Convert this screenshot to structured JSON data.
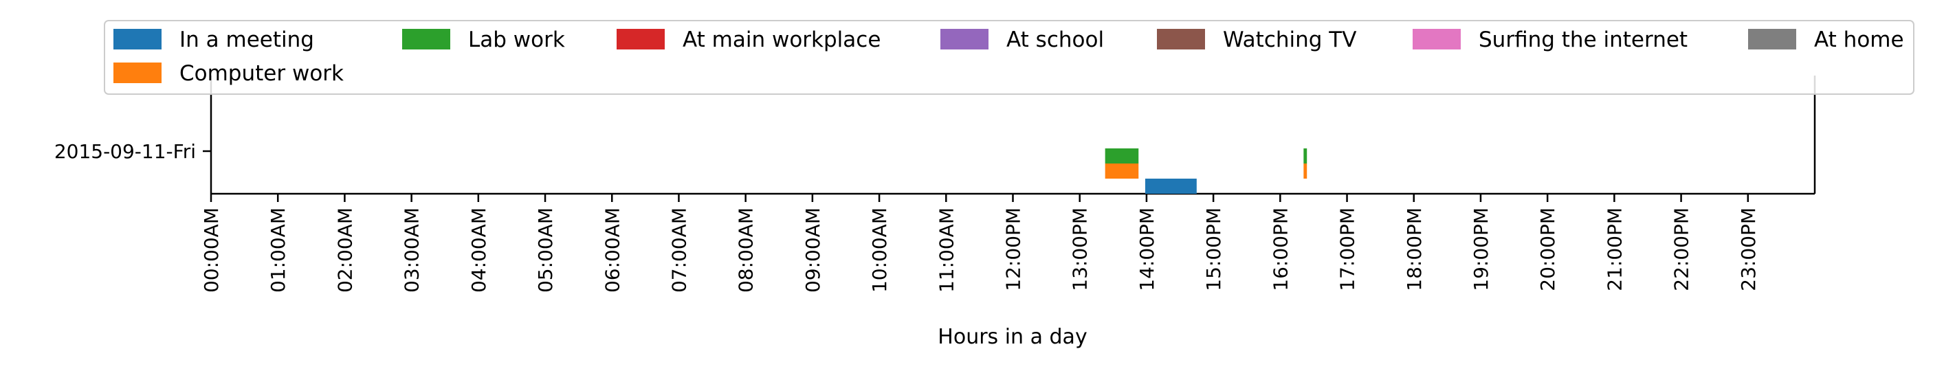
{
  "chart_data": {
    "type": "bar",
    "orientation": "horizontal-timeline",
    "title": "",
    "xlabel": "Hours in a day",
    "ylabel": "",
    "xlim": [
      0,
      24
    ],
    "x_ticks": [
      "00:00AM",
      "01:00AM",
      "02:00AM",
      "03:00AM",
      "04:00AM",
      "05:00AM",
      "06:00AM",
      "07:00AM",
      "08:00AM",
      "09:00AM",
      "10:00AM",
      "11:00AM",
      "12:00PM",
      "13:00PM",
      "14:00PM",
      "15:00PM",
      "16:00PM",
      "17:00PM",
      "18:00PM",
      "19:00PM",
      "20:00PM",
      "21:00PM",
      "22:00PM",
      "23:00PM"
    ],
    "categories": [
      "2015-09-11-Fri"
    ],
    "grid": false,
    "legend_position": "top",
    "series": [
      {
        "name": "In a meeting",
        "color": "#1f77b4",
        "intervals": [
          [
            13.98,
            14.75
          ]
        ]
      },
      {
        "name": "Computer work",
        "color": "#ff7f0e",
        "intervals": [
          [
            13.38,
            13.88
          ],
          [
            16.35,
            16.4
          ]
        ]
      },
      {
        "name": "Lab work",
        "color": "#2ca02c",
        "intervals": [
          [
            13.38,
            13.88
          ],
          [
            16.35,
            16.4
          ]
        ]
      },
      {
        "name": "At main workplace",
        "color": "#d62728",
        "intervals": []
      },
      {
        "name": "At school",
        "color": "#9467bd",
        "intervals": []
      },
      {
        "name": "Watching TV",
        "color": "#8c564b",
        "intervals": []
      },
      {
        "name": "Surfing the internet",
        "color": "#e377c2",
        "intervals": []
      },
      {
        "name": "At home",
        "color": "#7f7f7f",
        "intervals": []
      }
    ]
  }
}
